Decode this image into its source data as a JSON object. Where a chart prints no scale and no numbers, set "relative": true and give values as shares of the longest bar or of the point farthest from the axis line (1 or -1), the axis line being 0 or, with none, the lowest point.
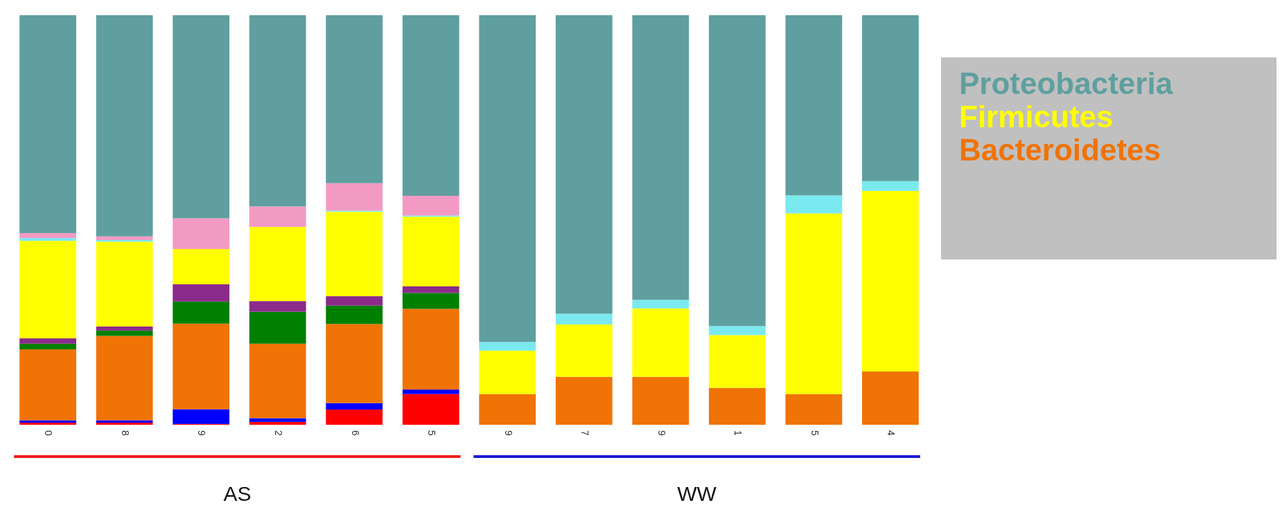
{
  "chart_data": {
    "type": "bar",
    "stacked": true,
    "relative": true,
    "categories": [
      "0",
      "8",
      "9",
      "2",
      "6",
      "5",
      "9",
      "7",
      "9",
      "1",
      "5",
      "4"
    ],
    "series": [
      {
        "color": "#ff0000",
        "values": [
          0.005,
          0.005,
          0.002,
          0.007,
          0.037,
          0.075,
          0,
          0,
          0,
          0,
          0,
          0
        ]
      },
      {
        "color": "#0000ff",
        "values": [
          0.006,
          0.006,
          0.036,
          0.009,
          0.016,
          0.011,
          0,
          0,
          0,
          0,
          0,
          0
        ]
      },
      {
        "name": "Bacteroidetes",
        "color": "#f07305",
        "values": [
          0.173,
          0.206,
          0.209,
          0.182,
          0.193,
          0.197,
          0.075,
          0.117,
          0.117,
          0.09,
          0.075,
          0.13
        ]
      },
      {
        "color": "#008000",
        "values": [
          0.014,
          0.013,
          0.054,
          0.078,
          0.045,
          0.039,
          0,
          0,
          0,
          0,
          0,
          0
        ]
      },
      {
        "color": "#8b2a8b",
        "values": [
          0.013,
          0.01,
          0.042,
          0.026,
          0.023,
          0.016,
          0,
          0,
          0,
          0,
          0,
          0
        ]
      },
      {
        "name": "Firmicutes",
        "color": "#ffff00",
        "values": [
          0.238,
          0.207,
          0.086,
          0.181,
          0.206,
          0.17,
          0.106,
          0.128,
          0.167,
          0.129,
          0.441,
          0.441
        ]
      },
      {
        "color": "#7aeaf0",
        "values": [
          0.007,
          0.004,
          0,
          0,
          0.003,
          0.003,
          0.021,
          0.026,
          0.021,
          0.022,
          0.044,
          0.024
        ]
      },
      {
        "color": "#f39ac4",
        "values": [
          0.012,
          0.009,
          0.075,
          0.05,
          0.067,
          0.048,
          0,
          0,
          0,
          0,
          0,
          0
        ]
      },
      {
        "name": "Proteobacteria",
        "color": "#5f9f9f",
        "values": [
          0.532,
          0.54,
          0.496,
          0.467,
          0.41,
          0.441,
          0.798,
          0.729,
          0.695,
          0.759,
          0.44,
          0.405
        ]
      }
    ],
    "annotations": [
      "AS",
      "WW"
    ],
    "legend": "top right"
  }
}
